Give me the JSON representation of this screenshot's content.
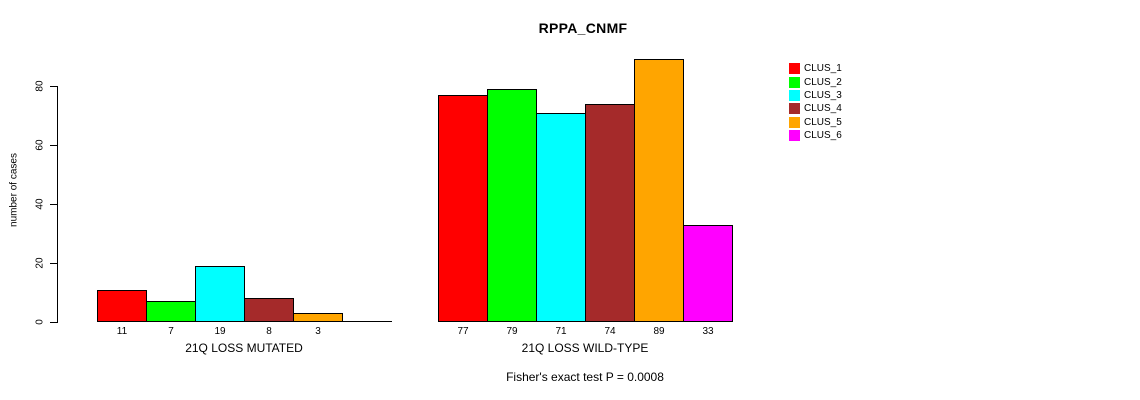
{
  "chart_data": {
    "type": "bar",
    "title": "RPPA_CNMF",
    "ylabel": "number of cases",
    "xlabel": "",
    "ylim": [
      0,
      80
    ],
    "yticks": [
      0,
      20,
      40,
      60,
      80
    ],
    "grid": false,
    "legend_position": "right",
    "clusters": [
      "CLUS_1",
      "CLUS_2",
      "CLUS_3",
      "CLUS_4",
      "CLUS_5",
      "CLUS_6"
    ],
    "colors": [
      "#FF0000",
      "#00FF00",
      "#00FFFF",
      "#A52A2A",
      "#FFA500",
      "#FF00FF"
    ],
    "groups": [
      {
        "label": "21Q LOSS MUTATED",
        "values": [
          11,
          7,
          19,
          8,
          3,
          0
        ],
        "value_labels": [
          "11",
          "7",
          "19",
          "8",
          "3",
          ""
        ]
      },
      {
        "label": "21Q LOSS WILD-TYPE",
        "values": [
          77,
          79,
          71,
          74,
          89,
          33
        ],
        "value_labels": [
          "77",
          "79",
          "71",
          "74",
          "89",
          "33"
        ]
      }
    ],
    "annotation": "Fisher's exact test P = 0.0008"
  }
}
